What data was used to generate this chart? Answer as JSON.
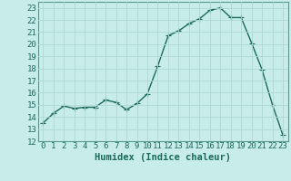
{
  "xlabel": "Humidex (Indice chaleur)",
  "x": [
    0,
    1,
    2,
    3,
    4,
    5,
    6,
    7,
    8,
    9,
    10,
    11,
    12,
    13,
    14,
    15,
    16,
    17,
    18,
    19,
    20,
    21,
    22,
    23
  ],
  "y": [
    13.5,
    14.3,
    14.9,
    14.7,
    14.8,
    14.8,
    15.4,
    15.2,
    14.6,
    15.1,
    15.9,
    18.2,
    20.7,
    21.1,
    21.7,
    22.1,
    22.8,
    23.0,
    22.2,
    22.2,
    20.1,
    17.9,
    15.0,
    12.5
  ],
  "line_color": "#1a6b5a",
  "marker": "+",
  "marker_size": 4,
  "bg_color": "#c8ece8",
  "grid_color": "#aed8d2",
  "tick_color": "#1a6b5a",
  "spine_color": "#5a9a8a",
  "ylim": [
    12,
    23.5
  ],
  "yticks": [
    12,
    13,
    14,
    15,
    16,
    17,
    18,
    19,
    20,
    21,
    22,
    23
  ],
  "xticks": [
    0,
    1,
    2,
    3,
    4,
    5,
    6,
    7,
    8,
    9,
    10,
    11,
    12,
    13,
    14,
    15,
    16,
    17,
    18,
    19,
    20,
    21,
    22,
    23
  ],
  "xlabel_fontsize": 7.5,
  "tick_fontsize": 6.5,
  "line_width": 1.0,
  "marker_edge_width": 0.8
}
